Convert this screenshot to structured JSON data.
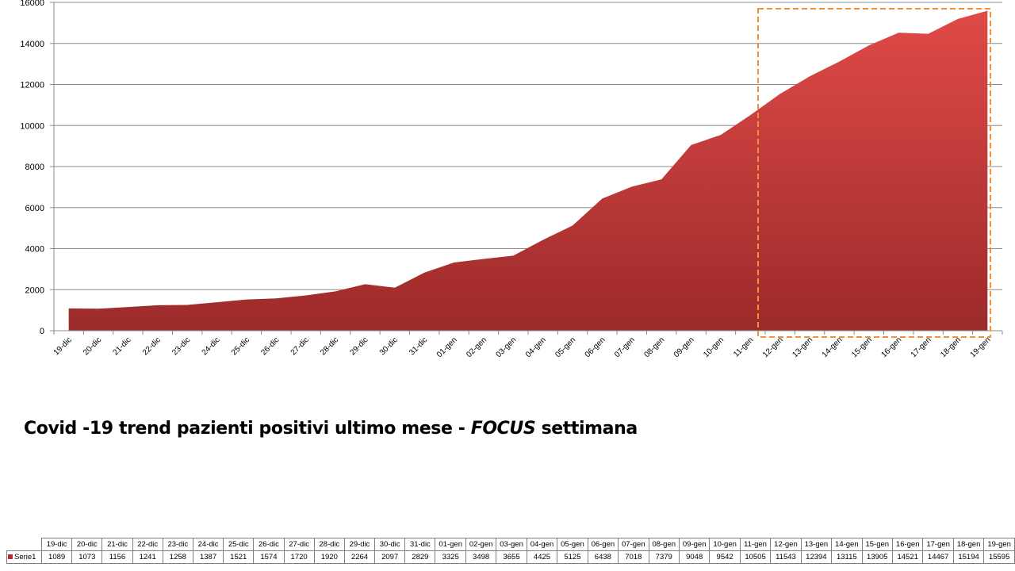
{
  "caption": {
    "part1": "Covid -19 trend pazienti positivi ultimo mese - ",
    "focus": "FOCUS",
    "part2": " settimana"
  },
  "colors": {
    "area_top": "#e04a48",
    "area_bottom": "#9c2a2a",
    "focus_box": "#f0923a",
    "gridline": "#8c8c8c"
  },
  "chart_data": {
    "type": "area",
    "title": "",
    "xlabel": "",
    "ylabel": "",
    "ylim": [
      0,
      16000
    ],
    "yticks": [
      0,
      2000,
      4000,
      6000,
      8000,
      10000,
      12000,
      14000,
      16000
    ],
    "grid": true,
    "categories": [
      "19-dic",
      "20-dic",
      "21-dic",
      "22-dic",
      "23-dic",
      "24-dic",
      "25-dic",
      "26-dic",
      "27-dic",
      "28-dic",
      "29-dic",
      "30-dic",
      "31-dic",
      "01-gen",
      "02-gen",
      "03-gen",
      "04-gen",
      "05-gen",
      "06-gen",
      "07-gen",
      "08-gen",
      "09-gen",
      "10-gen",
      "11-gen",
      "12-gen",
      "13-gen",
      "14-gen",
      "15-gen",
      "16-gen",
      "17-gen",
      "18-gen",
      "19-gen"
    ],
    "series": [
      {
        "name": "Serie1",
        "values": [
          1089,
          1073,
          1156,
          1241,
          1258,
          1387,
          1521,
          1574,
          1720,
          1920,
          2264,
          2097,
          2829,
          3325,
          3498,
          3655,
          4425,
          5125,
          6438,
          7018,
          7379,
          9048,
          9542,
          10505,
          11543,
          12394,
          13115,
          13905,
          14521,
          14467,
          15194,
          15595
        ]
      }
    ],
    "highlight": {
      "label": "FOCUS",
      "from_category": "12-gen",
      "to_category": "19-gen"
    }
  }
}
